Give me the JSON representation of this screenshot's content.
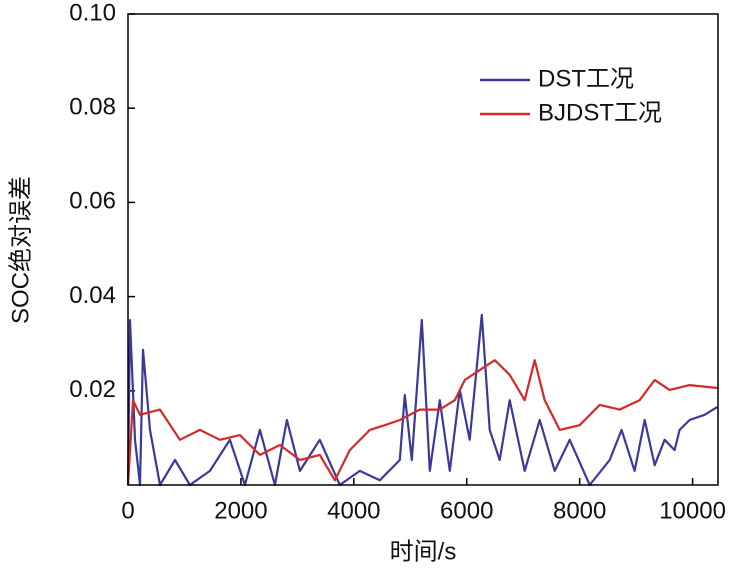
{
  "chart_data": {
    "type": "line",
    "xlabel": "时间/s",
    "ylabel": "SOC绝对误差",
    "xlim": [
      0,
      10450
    ],
    "ylim": [
      0,
      0.1
    ],
    "xticks": [
      0,
      2000,
      4000,
      6000,
      8000,
      10000
    ],
    "yticks": [
      0.02,
      0.04,
      0.06,
      {
        "value": 0.08,
        "label": "0.08"
      },
      {
        "value": 0.1,
        "label": "0.10"
      }
    ],
    "legend": "upper right",
    "series": [
      {
        "name": "DST工况",
        "color": "#3b3a9a",
        "x": [
          0,
          35,
          124,
          212,
          265,
          389,
          566,
          832,
          1097,
          1451,
          1805,
          2071,
          2336,
          2602,
          2814,
          3044,
          3398,
          3752,
          4106,
          4460,
          4814,
          4903,
          5027,
          5204,
          5345,
          5522,
          5699,
          5876,
          6053,
          6266,
          6407,
          6584,
          6761,
          7027,
          7292,
          7558,
          7823,
          8177,
          8531,
          8743,
          8973,
          9151,
          9328,
          9505,
          9682,
          9770,
          9947,
          10213,
          10443
        ],
        "values": [
          0,
          0.035,
          0.0096,
          0,
          0.0287,
          0.0117,
          0,
          0.0053,
          0,
          0.003,
          0.0096,
          0,
          0.0117,
          0,
          0.0138,
          0.003,
          0.0096,
          0,
          0.003,
          0.001,
          0.0053,
          0.0191,
          0.0053,
          0.035,
          0.003,
          0.018,
          0.003,
          0.0202,
          0.0096,
          0.0361,
          0.0117,
          0.0053,
          0.018,
          0.003,
          0.0138,
          0.003,
          0.0096,
          0,
          0.0053,
          0.0117,
          0.003,
          0.0138,
          0.0042,
          0.0096,
          0.0074,
          0.0117,
          0.0138,
          0.0149,
          0.0166
        ]
      },
      {
        "name": "BJDST工况",
        "color": "#d42a2a",
        "x": [
          0,
          88,
          212,
          566,
          920,
          1274,
          1628,
          1982,
          2336,
          2690,
          3044,
          3398,
          3664,
          3929,
          4283,
          4549,
          4814,
          5168,
          5522,
          5788,
          5965,
          6230,
          6496,
          6761,
          7027,
          7204,
          7381,
          7646,
          8000,
          8354,
          8708,
          9062,
          9328,
          9593,
          9947,
          10443
        ],
        "values": [
          0,
          0.018,
          0.0149,
          0.016,
          0.0096,
          0.0117,
          0.0096,
          0.0106,
          0.0064,
          0.0085,
          0.0053,
          0.0064,
          0.001,
          0.0074,
          0.0117,
          0.0127,
          0.0138,
          0.016,
          0.016,
          0.018,
          0.0223,
          0.0244,
          0.0265,
          0.0234,
          0.018,
          0.0265,
          0.018,
          0.0117,
          0.0127,
          0.017,
          0.016,
          0.018,
          0.0223,
          0.0202,
          0.0212,
          0.0206
        ]
      }
    ]
  }
}
